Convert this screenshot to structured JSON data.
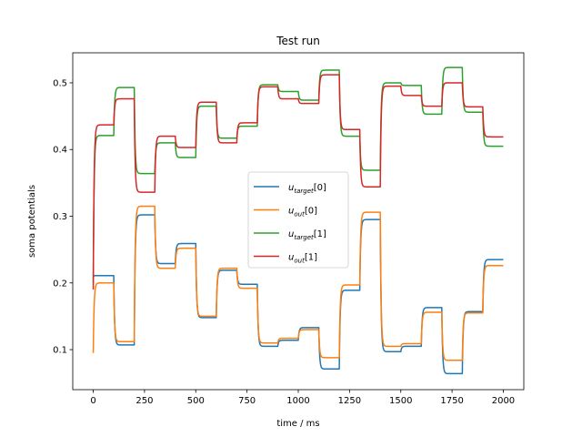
{
  "chart_data": {
    "type": "line",
    "title": "Test run",
    "xlabel": "time / ms",
    "ylabel": "soma potentials",
    "xlim": [
      -100,
      2100
    ],
    "ylim": [
      0.04,
      0.545
    ],
    "xticks": [
      0,
      250,
      500,
      750,
      1000,
      1250,
      1500,
      1750,
      2000
    ],
    "yticks": [
      0.1,
      0.2,
      0.3,
      0.4,
      0.5
    ],
    "ytick_labels": [
      "0.1",
      "0.2",
      "0.3",
      "0.4",
      "0.5"
    ],
    "legend_position": "center",
    "segment_edges": [
      0,
      100,
      200,
      300,
      400,
      500,
      600,
      700,
      800,
      900,
      1000,
      1100,
      1200,
      1300,
      1400,
      1500,
      1600,
      1700,
      1800,
      1900,
      2000
    ],
    "series": [
      {
        "name": "u_target[0]",
        "legend_main": "u",
        "legend_sub": "target",
        "legend_suffix": "[0]",
        "color": "#1f77b4",
        "start": 0.21,
        "values": [
          0.211,
          0.107,
          0.302,
          0.229,
          0.259,
          0.148,
          0.219,
          0.198,
          0.105,
          0.114,
          0.133,
          0.071,
          0.189,
          0.295,
          0.097,
          0.105,
          0.163,
          0.064,
          0.157,
          0.235
        ]
      },
      {
        "name": "u_out[0]",
        "legend_main": "u",
        "legend_sub": "out",
        "legend_suffix": "[0]",
        "color": "#ff7f0e",
        "start": 0.095,
        "values": [
          0.2,
          0.112,
          0.315,
          0.222,
          0.252,
          0.15,
          0.222,
          0.192,
          0.11,
          0.117,
          0.13,
          0.088,
          0.197,
          0.306,
          0.105,
          0.109,
          0.156,
          0.084,
          0.155,
          0.226
        ]
      },
      {
        "name": "u_target[1]",
        "legend_main": "u",
        "legend_sub": "target",
        "legend_suffix": "[1]",
        "color": "#2ca02c",
        "start": 0.2,
        "values": [
          0.421,
          0.493,
          0.364,
          0.41,
          0.388,
          0.465,
          0.417,
          0.435,
          0.497,
          0.487,
          0.474,
          0.519,
          0.42,
          0.369,
          0.5,
          0.496,
          0.453,
          0.523,
          0.456,
          0.405
        ]
      },
      {
        "name": "u_out[1]",
        "legend_main": "u",
        "legend_sub": "out",
        "legend_suffix": "[1]",
        "color": "#d62728",
        "start": 0.19,
        "values": [
          0.437,
          0.476,
          0.336,
          0.42,
          0.403,
          0.471,
          0.41,
          0.44,
          0.494,
          0.476,
          0.469,
          0.512,
          0.43,
          0.344,
          0.495,
          0.481,
          0.465,
          0.5,
          0.464,
          0.419
        ]
      }
    ]
  }
}
